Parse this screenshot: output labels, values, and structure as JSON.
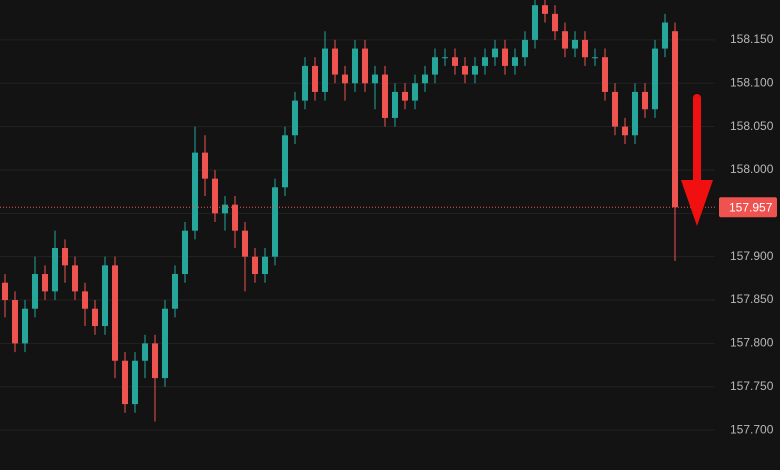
{
  "chart_data": {
    "type": "candlestick",
    "open": [
      157.87,
      157.85,
      157.8,
      157.84,
      157.88,
      157.86,
      157.91,
      157.89,
      157.86,
      157.84,
      157.82,
      157.89,
      157.78,
      157.73,
      157.78,
      157.8,
      157.76,
      157.84,
      157.88,
      157.93,
      158.02,
      157.99,
      157.95,
      157.96,
      157.93,
      157.9,
      157.88,
      157.9,
      157.98,
      158.04,
      158.08,
      158.12,
      158.09,
      158.14,
      158.11,
      158.1,
      158.14,
      158.1,
      158.11,
      158.06,
      158.09,
      158.08,
      158.1,
      158.11,
      158.13,
      158.13,
      158.12,
      158.11,
      158.12,
      158.13,
      158.14,
      158.12,
      158.13,
      158.15,
      158.19,
      158.18,
      158.16,
      158.14,
      158.15,
      158.13,
      158.13,
      158.09,
      158.05,
      158.04,
      158.09,
      158.07,
      158.14,
      158.16
    ],
    "high": [
      157.88,
      157.86,
      157.85,
      157.9,
      157.89,
      157.93,
      157.92,
      157.9,
      157.87,
      157.85,
      157.9,
      157.9,
      157.79,
      157.79,
      157.81,
      157.81,
      157.85,
      157.89,
      157.94,
      158.05,
      158.04,
      158.0,
      157.97,
      157.97,
      157.94,
      157.91,
      157.91,
      157.99,
      158.05,
      158.09,
      158.13,
      158.13,
      158.16,
      158.15,
      158.12,
      158.15,
      158.15,
      158.12,
      158.12,
      158.1,
      158.1,
      158.11,
      158.12,
      158.14,
      158.14,
      158.14,
      158.13,
      158.13,
      158.14,
      158.15,
      158.15,
      158.14,
      158.16,
      158.2,
      158.2,
      158.19,
      158.17,
      158.16,
      158.16,
      158.14,
      158.14,
      158.1,
      158.06,
      158.1,
      158.1,
      158.15,
      158.18,
      158.17
    ],
    "low": [
      157.83,
      157.79,
      157.79,
      157.83,
      157.85,
      157.85,
      157.87,
      157.85,
      157.82,
      157.81,
      157.81,
      157.76,
      157.72,
      157.72,
      157.76,
      157.71,
      157.75,
      157.83,
      157.87,
      157.92,
      157.97,
      157.94,
      157.93,
      157.91,
      157.86,
      157.87,
      157.87,
      157.89,
      157.97,
      158.03,
      158.07,
      158.08,
      158.08,
      158.1,
      158.08,
      158.09,
      158.09,
      158.07,
      158.05,
      158.05,
      158.07,
      158.07,
      158.09,
      158.1,
      158.12,
      158.11,
      158.1,
      158.1,
      158.11,
      158.12,
      158.11,
      158.11,
      158.12,
      158.14,
      158.17,
      158.15,
      158.13,
      158.13,
      158.12,
      158.12,
      158.08,
      158.04,
      158.03,
      158.03,
      158.06,
      158.06,
      158.13,
      157.895
    ],
    "close": [
      157.85,
      157.8,
      157.84,
      157.88,
      157.86,
      157.91,
      157.89,
      157.86,
      157.84,
      157.82,
      157.89,
      157.78,
      157.73,
      157.78,
      157.8,
      157.76,
      157.84,
      157.88,
      157.93,
      158.02,
      157.99,
      157.95,
      157.96,
      157.93,
      157.9,
      157.88,
      157.9,
      157.98,
      158.04,
      158.08,
      158.12,
      158.09,
      158.14,
      158.11,
      158.1,
      158.14,
      158.1,
      158.11,
      158.06,
      158.09,
      158.08,
      158.1,
      158.11,
      158.13,
      158.13,
      158.12,
      158.11,
      158.12,
      158.13,
      158.14,
      158.12,
      158.13,
      158.15,
      158.19,
      158.18,
      158.16,
      158.14,
      158.15,
      158.13,
      158.13,
      158.09,
      158.05,
      158.04,
      158.09,
      158.07,
      158.14,
      158.17,
      157.957
    ],
    "up_color": "#26a69a",
    "down_color": "#ef5350",
    "last_price": 157.957,
    "ylim": [
      157.654,
      158.196
    ],
    "yticks": [
      {
        "value": 157.7,
        "label": "157.700"
      },
      {
        "value": 157.75,
        "label": "157.750"
      },
      {
        "value": 157.8,
        "label": "157.800"
      },
      {
        "value": 157.85,
        "label": "157.850"
      },
      {
        "value": 157.9,
        "label": "157.900"
      },
      {
        "value": 157.95,
        "label": "157.950"
      },
      {
        "value": 158.0,
        "label": "158.000"
      },
      {
        "value": 158.05,
        "label": "158.050"
      },
      {
        "value": 158.1,
        "label": "158.100"
      },
      {
        "value": 158.15,
        "label": "158.150"
      }
    ],
    "grid": true
  }
}
